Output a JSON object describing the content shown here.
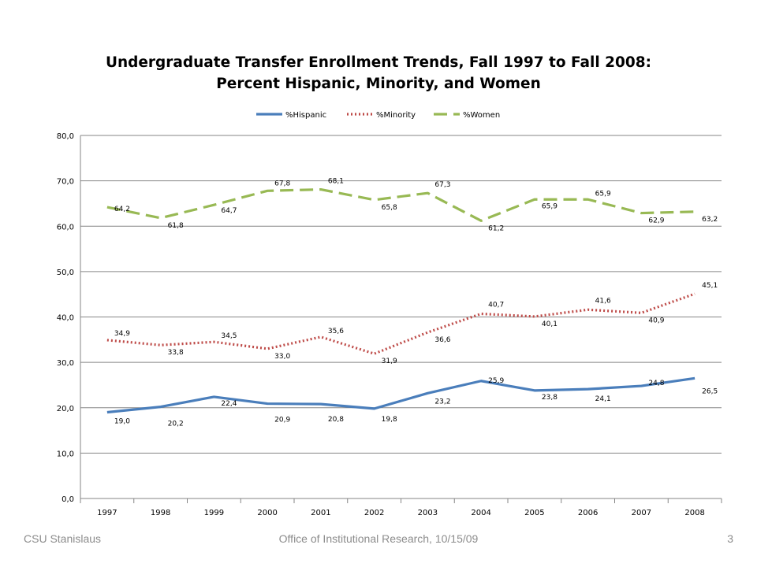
{
  "slide": {
    "footer_left": "CSU Stanislaus",
    "footer_center": "Office of Institutional Research, 10/15/09",
    "page_number": "3"
  },
  "chart_data": {
    "type": "line",
    "title": "Undergraduate Transfer Enrollment Trends, Fall 1997 to Fall 2008:",
    "subtitle": "Percent Hispanic, Minority, and Women",
    "xlabel": "",
    "ylabel": "",
    "categories": [
      "1997",
      "1998",
      "1999",
      "2000",
      "2001",
      "2002",
      "2003",
      "2004",
      "2005",
      "2006",
      "2007",
      "2008"
    ],
    "ylim": [
      0,
      80
    ],
    "yticks": [
      0,
      10,
      20,
      30,
      40,
      50,
      60,
      70,
      80
    ],
    "ytick_labels": [
      "0,0",
      "10,0",
      "20,0",
      "30,0",
      "40,0",
      "50,0",
      "60,0",
      "70,0",
      "80,0"
    ],
    "grid": true,
    "legend_position": "top",
    "series": [
      {
        "name": "%Hispanic",
        "color": "#4a7ebb",
        "style": "solid",
        "values": [
          19.0,
          20.2,
          22.4,
          20.9,
          20.8,
          19.8,
          23.2,
          25.9,
          23.8,
          24.1,
          24.8,
          26.5
        ],
        "labels": [
          "19,0",
          "20,2",
          "22,4",
          "20,9",
          "20,8",
          "19,8",
          "23,2",
          "25,9",
          "23,8",
          "24,1",
          "24,8",
          "26,5"
        ]
      },
      {
        "name": "%Minority",
        "color": "#be4b48",
        "style": "dotted",
        "values": [
          34.9,
          33.8,
          34.5,
          33.0,
          35.6,
          31.9,
          36.6,
          40.7,
          40.1,
          41.6,
          40.9,
          45.1
        ],
        "labels": [
          "34,9",
          "33,8",
          "34,5",
          "33,0",
          "35,6",
          "31,9",
          "36,6",
          "40,7",
          "40,1",
          "41,6",
          "40,9",
          "45,1"
        ]
      },
      {
        "name": "%Women",
        "color": "#98b954",
        "style": "dashed",
        "values": [
          64.2,
          61.8,
          64.7,
          67.8,
          68.1,
          65.8,
          67.3,
          61.2,
          65.9,
          65.9,
          62.9,
          63.2
        ],
        "labels": [
          "64,2",
          "61,8",
          "64,7",
          "67,8",
          "68,1",
          "65,8",
          "67,3",
          "61,2",
          "65,9",
          "65,9",
          "62,9",
          "63,2"
        ]
      }
    ]
  }
}
